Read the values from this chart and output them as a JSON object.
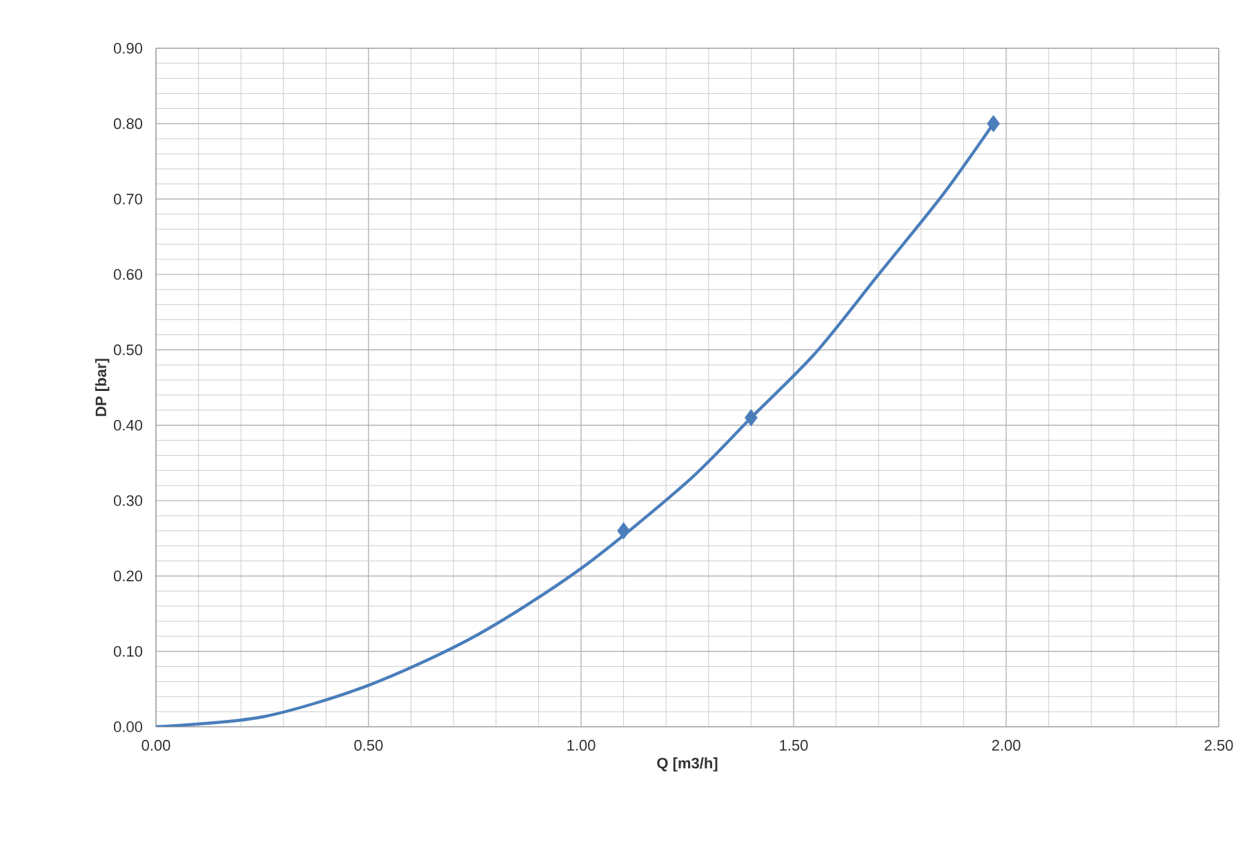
{
  "chart_data": {
    "type": "line",
    "xlabel": "Q [m3/h]",
    "ylabel": "DP [bar]",
    "xlim": [
      0,
      2.5
    ],
    "ylim": [
      0,
      0.9
    ],
    "xticks": [
      {
        "value": 0,
        "label": "0.00"
      },
      {
        "value": 0.5,
        "label": "0.50"
      },
      {
        "value": 1,
        "label": "1.00"
      },
      {
        "value": 1.5,
        "label": "1.50"
      },
      {
        "value": 2,
        "label": "2.00"
      },
      {
        "value": 2.5,
        "label": "2.50"
      }
    ],
    "yticks": [
      {
        "value": 0,
        "label": "0.00"
      },
      {
        "value": 0.1,
        "label": "0.10"
      },
      {
        "value": 0.2,
        "label": "0.20"
      },
      {
        "value": 0.3,
        "label": "0.30"
      },
      {
        "value": 0.4,
        "label": "0.40"
      },
      {
        "value": 0.5,
        "label": "0.50"
      },
      {
        "value": 0.6,
        "label": "0.60"
      },
      {
        "value": 0.7,
        "label": "0.70"
      },
      {
        "value": 0.8,
        "label": "0.80"
      },
      {
        "value": 0.9,
        "label": "0.90"
      }
    ],
    "grid": true,
    "series": [
      {
        "color": "#4a7ebb",
        "marker": "none",
        "line_style": "solid",
        "x": [
          0,
          0.25,
          0.5,
          0.75,
          1.0,
          1.25,
          1.4,
          1.55,
          1.7,
          1.85,
          1.97
        ],
        "values": [
          0,
          0.013,
          0.055,
          0.12,
          0.21,
          0.325,
          0.41,
          0.495,
          0.6,
          0.705,
          0.8
        ]
      },
      {
        "type": "scatter",
        "color": "#4a7ebb",
        "marker": "diamond",
        "x": [
          1.1,
          1.4,
          1.97
        ],
        "values": [
          0.26,
          0.41,
          0.8
        ]
      }
    ]
  }
}
